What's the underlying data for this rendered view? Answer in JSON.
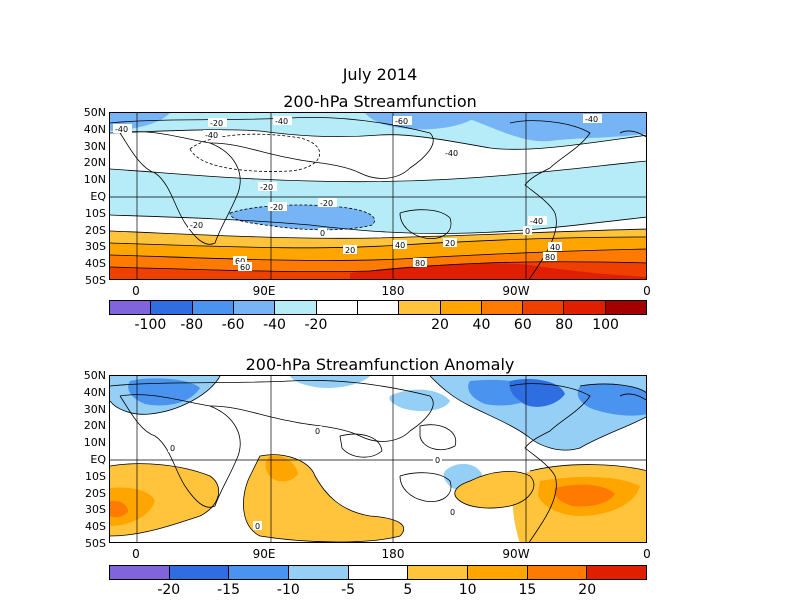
{
  "title_line1": "July 2014",
  "panel1": {
    "title": "200-hPa Streamfunction",
    "lat_labels": [
      "50N",
      "40N",
      "30N",
      "20N",
      "10N",
      "EQ",
      "10S",
      "20S",
      "30S",
      "40S",
      "50S"
    ],
    "lon_labels": [
      "0",
      "90E",
      "180",
      "90W",
      "0"
    ],
    "contour_labels": [
      "-40",
      "-20",
      "-40",
      "-60",
      "-40",
      "-20",
      "-40",
      "-20",
      "-40",
      "-40",
      "-20",
      "-20",
      "0",
      "0",
      "20",
      "40",
      "20",
      "40",
      "60",
      "80",
      "60",
      "80"
    ],
    "colorbar": {
      "colors": [
        "#7f64dc",
        "#2f6ee0",
        "#4a94f0",
        "#76b4f5",
        "#b5ecf8",
        "#ffffff",
        "#ffffff",
        "#ffc43c",
        "#ffa500",
        "#ff7a00",
        "#f04000",
        "#e01e00",
        "#a40000"
      ],
      "labels": [
        "-100",
        "-80",
        "-60",
        "-40",
        "-20",
        "20",
        "40",
        "60",
        "80",
        "100"
      ]
    }
  },
  "panel2": {
    "title": "200-hPa Streamfunction Anomaly",
    "lat_labels": [
      "50N",
      "40N",
      "30N",
      "20N",
      "10N",
      "EQ",
      "10S",
      "20S",
      "30S",
      "40S",
      "50S"
    ],
    "lon_labels": [
      "0",
      "90E",
      "180",
      "90W",
      "0"
    ],
    "contour_labels": [
      "0",
      "0",
      "0",
      "0",
      "0"
    ],
    "colorbar": {
      "colors": [
        "#7f64dc",
        "#2f6ee0",
        "#4a94f0",
        "#95cff5",
        "#ffffff",
        "#ffc43c",
        "#ffa500",
        "#ff7a00",
        "#e01e00"
      ],
      "labels": [
        "-20",
        "-15",
        "-10",
        "-5",
        "5",
        "10",
        "15",
        "20"
      ]
    }
  }
}
